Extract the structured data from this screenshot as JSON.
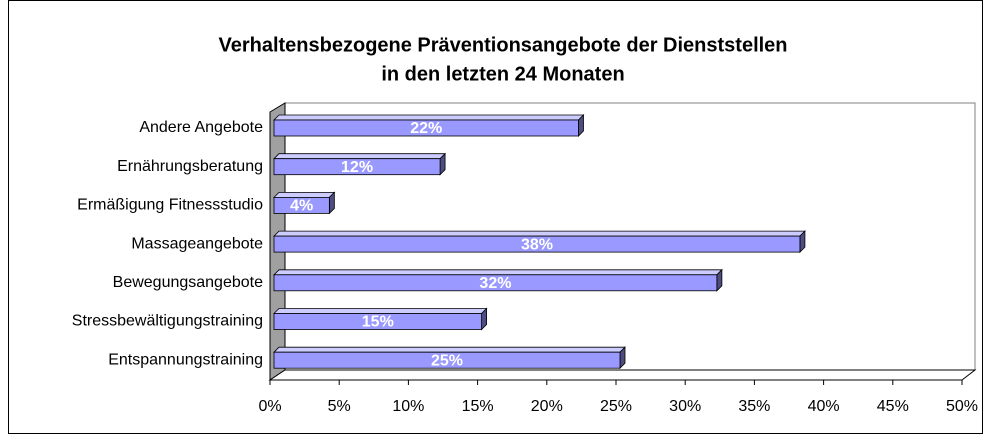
{
  "chart_data": {
    "type": "bar",
    "orientation": "horizontal",
    "title": [
      "Verhaltensbezogene Präventionsangebote der Dienststellen",
      "in den letzten 24 Monaten"
    ],
    "categories": [
      "Andere Angebote",
      "Ernährungsberatung",
      "Ermäßigung Fitnessstudio",
      "Massageangebote",
      "Bewegungsangebote",
      "Stressbewältigungstraining",
      "Entspannungstraining"
    ],
    "values": [
      22,
      12,
      4,
      38,
      32,
      15,
      25
    ],
    "value_labels": [
      "22%",
      "12%",
      "4%",
      "38%",
      "32%",
      "15%",
      "25%"
    ],
    "color": "#9999ff",
    "xlim": [
      0,
      50
    ],
    "xticks": [
      {
        "value": 0,
        "label": "0%"
      },
      {
        "value": 5,
        "label": "5%"
      },
      {
        "value": 10,
        "label": "10%"
      },
      {
        "value": 15,
        "label": "15%"
      },
      {
        "value": 20,
        "label": "20%"
      },
      {
        "value": 25,
        "label": "25%"
      },
      {
        "value": 30,
        "label": "30%"
      },
      {
        "value": 35,
        "label": "35%"
      },
      {
        "value": 40,
        "label": "40%"
      },
      {
        "value": 45,
        "label": "45%"
      },
      {
        "value": 50,
        "label": "50%"
      }
    ],
    "grid": false
  }
}
